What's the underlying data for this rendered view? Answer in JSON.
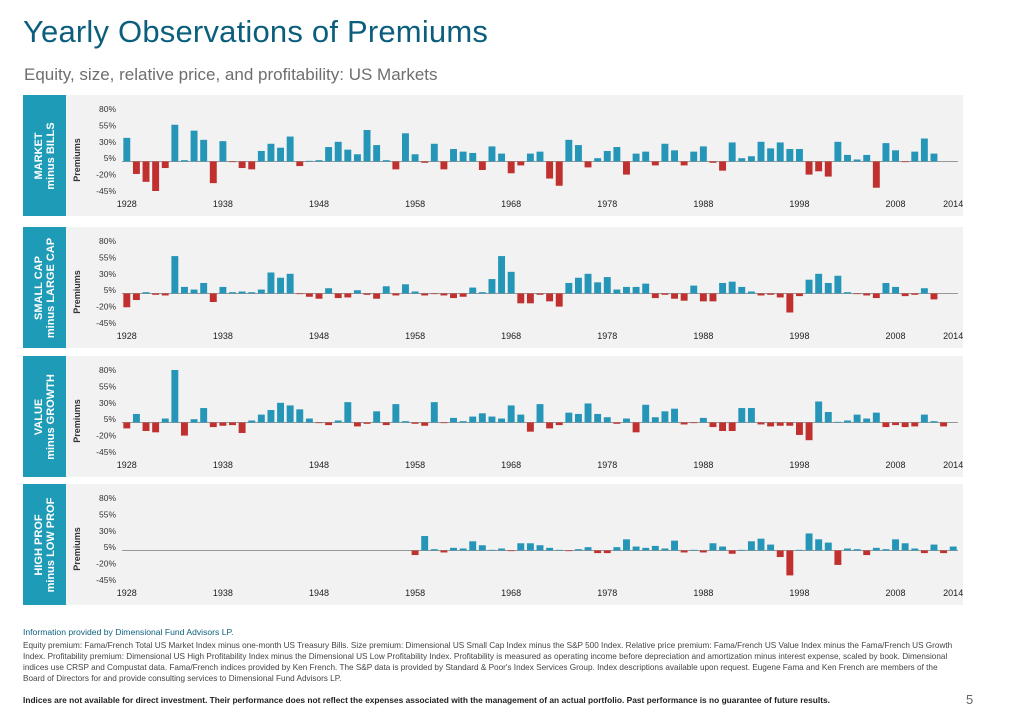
{
  "title": "Yearly Observations of Premiums",
  "subtitle": "Equity, size, relative price, and profitability: US Markets",
  "colors": {
    "positive": "#2596b8",
    "negative": "#c0302e",
    "label_bg": "#1e9bb7",
    "title": "#0b5f7d"
  },
  "footer": {
    "source": "Information provided by Dimensional Fund Advisors LP.",
    "notes": "Equity premium: Fama/French Total US Market Index minus one-month US Treasury Bills. Size premium: Dimensional US Small Cap Index minus the S&P 500 Index. Relative price premium: Fama/French US Value Index minus the Fama/French US Growth Index. Profitability premium: Dimensional US High Profitability Index minus the Dimensional US Low Profitability Index. Profitability is measured as operating income before depreciation and amortization minus interest expense, scaled by book. Dimensional indices use CRSP and Compustat data. Fama/French indices provided by Ken French. The S&P data is provided by Standard & Poor's Index Services Group. Index descriptions available upon request. Eugene Fama and Ken French are members of the Board of Directors for and provide consulting services to Dimensional Fund Advisors LP.",
    "disclaimer": "Indices are not available for direct investment. Their performance does not reflect the expenses associated with the management of an actual portfolio. Past performance is no guarantee of future results.",
    "page_number": "5"
  },
  "chart_data": [
    {
      "type": "bar",
      "panel_label": "MARKET\nminus BILLS",
      "ylabel": "Premiums",
      "ylim": [
        -45,
        80
      ],
      "yticks": [
        "80%",
        "55%",
        "30%",
        "5%",
        "-20%",
        "-45%"
      ],
      "ytick_values": [
        80,
        55,
        30,
        5,
        -20,
        -45
      ],
      "xticks": [
        "1928",
        "1938",
        "1948",
        "1958",
        "1968",
        "1978",
        "1988",
        "1998",
        "2008",
        "2014"
      ],
      "x_start": 1928,
      "x_end": 2014,
      "values": [
        36,
        -19,
        -31,
        -45,
        -10,
        56,
        2,
        47,
        33,
        -33,
        31,
        -1,
        -10,
        -12,
        16,
        27,
        21,
        38,
        -7,
        1,
        2,
        22,
        30,
        18,
        11,
        48,
        25,
        2,
        -12,
        43,
        11,
        -2,
        27,
        -12,
        19,
        15,
        13,
        -13,
        23,
        12,
        -18,
        -6,
        12,
        15,
        -26,
        -37,
        33,
        25,
        -9,
        5,
        16,
        22,
        -20,
        12,
        15,
        -6,
        27,
        17,
        -6,
        15,
        23,
        -2,
        -14,
        29,
        5,
        8,
        30,
        20,
        29,
        19,
        19,
        -20,
        -15,
        -23,
        30,
        10,
        3,
        10,
        -40,
        28,
        17,
        -1,
        15,
        35,
        12
      ],
      "value_start_year": 1928
    },
    {
      "type": "bar",
      "panel_label": "SMALL CAP\nminus LARGE CAP",
      "ylabel": "Premiums",
      "ylim": [
        -45,
        80
      ],
      "yticks": [
        "80%",
        "55%",
        "30%",
        "5%",
        "-20%",
        "-45%"
      ],
      "ytick_values": [
        80,
        55,
        30,
        5,
        -20,
        -45
      ],
      "xticks": [
        "1928",
        "1938",
        "1948",
        "1958",
        "1968",
        "1978",
        "1988",
        "1998",
        "2008",
        "2014"
      ],
      "x_start": 1928,
      "x_end": 2014,
      "values": [
        -21,
        -10,
        2,
        -2,
        -3,
        57,
        10,
        6,
        16,
        -13,
        10,
        2,
        3,
        2,
        6,
        32,
        24,
        30,
        -1,
        -5,
        -8,
        8,
        -7,
        -6,
        5,
        -2,
        -8,
        11,
        -3,
        14,
        3,
        -3,
        -1,
        -3,
        -7,
        -5,
        9,
        2,
        22,
        57,
        33,
        -15,
        -15,
        -2,
        -12,
        -20,
        16,
        24,
        30,
        17,
        25,
        6,
        10,
        10,
        15,
        -7,
        -2,
        -8,
        -11,
        12,
        -12,
        -12,
        16,
        18,
        10,
        3,
        -3,
        -2,
        -6,
        -29,
        -4,
        21,
        30,
        16,
        27,
        2,
        -1,
        -3,
        -7,
        16,
        10,
        -4,
        -2,
        8,
        -9
      ],
      "value_start_year": 1928
    },
    {
      "type": "bar",
      "panel_label": "VALUE\nminus GROWTH",
      "ylabel": "Premiums",
      "ylim": [
        -45,
        80
      ],
      "yticks": [
        "80%",
        "55%",
        "30%",
        "5%",
        "-20%",
        "-45%"
      ],
      "ytick_values": [
        80,
        55,
        30,
        5,
        -20,
        -45
      ],
      "xticks": [
        "1928",
        "1938",
        "1948",
        "1958",
        "1968",
        "1978",
        "1988",
        "1998",
        "2008",
        "2014"
      ],
      "x_start": 1928,
      "x_end": 2014,
      "values": [
        -9,
        13,
        -13,
        -15,
        6,
        80,
        -20,
        5,
        22,
        -7,
        -5,
        -4,
        -16,
        3,
        12,
        19,
        30,
        26,
        20,
        6,
        -1,
        -4,
        3,
        31,
        -6,
        -2,
        17,
        -4,
        28,
        2,
        -2,
        -5,
        31,
        -1,
        7,
        2,
        9,
        14,
        9,
        6,
        26,
        12,
        -14,
        28,
        -9,
        -4,
        15,
        13,
        29,
        13,
        8,
        -2,
        6,
        -15,
        27,
        8,
        17,
        21,
        -3,
        -1,
        7,
        -7,
        -13,
        -13,
        22,
        22,
        -3,
        -6,
        -5,
        -5,
        -19,
        -27,
        32,
        16,
        1,
        3,
        12,
        6,
        15,
        -7,
        -4,
        -7,
        -6,
        12,
        2,
        -6
      ],
      "value_start_year": 1928
    },
    {
      "type": "bar",
      "panel_label": "HIGH PROF\nminus LOW PROF",
      "ylabel": "Premiums",
      "ylim": [
        -45,
        80
      ],
      "yticks": [
        "80%",
        "55%",
        "30%",
        "5%",
        "-20%",
        "-45%"
      ],
      "ytick_values": [
        80,
        55,
        30,
        5,
        -20,
        -45
      ],
      "xticks": [
        "1928",
        "1938",
        "1948",
        "1958",
        "1968",
        "1978",
        "1988",
        "1998",
        "2008",
        "2014"
      ],
      "x_start": 1928,
      "x_end": 2014,
      "values": [
        -7,
        22,
        2,
        -3,
        4,
        3,
        14,
        8,
        1,
        3,
        -1,
        11,
        11,
        8,
        4,
        1,
        -1,
        2,
        5,
        -4,
        -4,
        5,
        17,
        6,
        4,
        7,
        3,
        15,
        -3,
        1,
        -3,
        11,
        6,
        -5,
        1,
        14,
        18,
        9,
        -10,
        -38,
        1,
        26,
        17,
        12,
        -22,
        3,
        2,
        -7,
        4,
        2,
        17,
        11,
        3,
        -4,
        9,
        -4,
        6
      ],
      "value_start_year": 1958
    }
  ]
}
